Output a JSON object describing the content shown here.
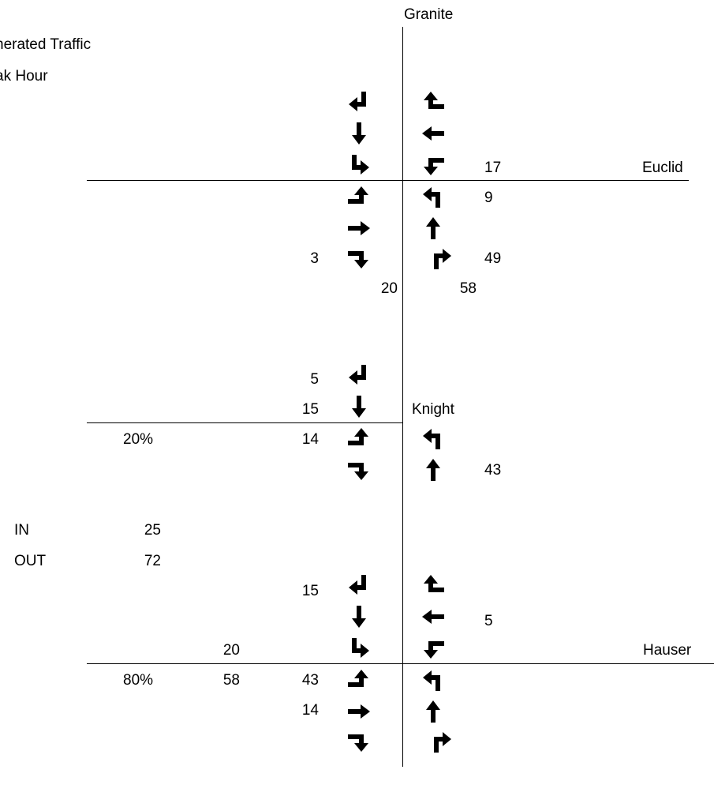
{
  "title": {
    "line1": "nerated Traffic",
    "line2": "ak Hour"
  },
  "streets": {
    "granite": "Granite",
    "euclid": "Euclid",
    "knight": "Knight",
    "hauser": "Hauser"
  },
  "summary": {
    "in_label": "IN",
    "out_label": "OUT",
    "in_value": "25",
    "out_value": "72"
  },
  "split": {
    "knight_pct": "20%",
    "hauser_pct": "80%"
  },
  "euclid": {
    "wb_right": "17",
    "nb_left": "9",
    "nb_right": "49",
    "eb_right": "3",
    "sb_total": "20",
    "nb_total": "58"
  },
  "knight": {
    "sb_right": "5",
    "sb_thru": "15",
    "eb_left": "14",
    "nb_thru": "43"
  },
  "hauser": {
    "sb_right": "15",
    "wb_thru": "5",
    "west_out": "20",
    "west_in": "58",
    "eb_left": "43",
    "eb_thru": "14"
  },
  "icons": {
    "sb_right": "arrow-south-right-turn-icon",
    "sb_thru": "arrow-south-thru-icon",
    "sb_left": "arrow-south-left-turn-icon",
    "nb_left": "arrow-north-left-turn-icon",
    "nb_thru": "arrow-north-thru-icon",
    "nb_right": "arrow-north-right-turn-icon",
    "wb_right": "arrow-west-right-turn-icon",
    "wb_thru": "arrow-west-thru-icon",
    "wb_left": "arrow-west-left-turn-icon",
    "eb_left": "arrow-east-left-turn-icon",
    "eb_thru": "arrow-east-thru-icon",
    "eb_right": "arrow-east-right-turn-icon"
  }
}
